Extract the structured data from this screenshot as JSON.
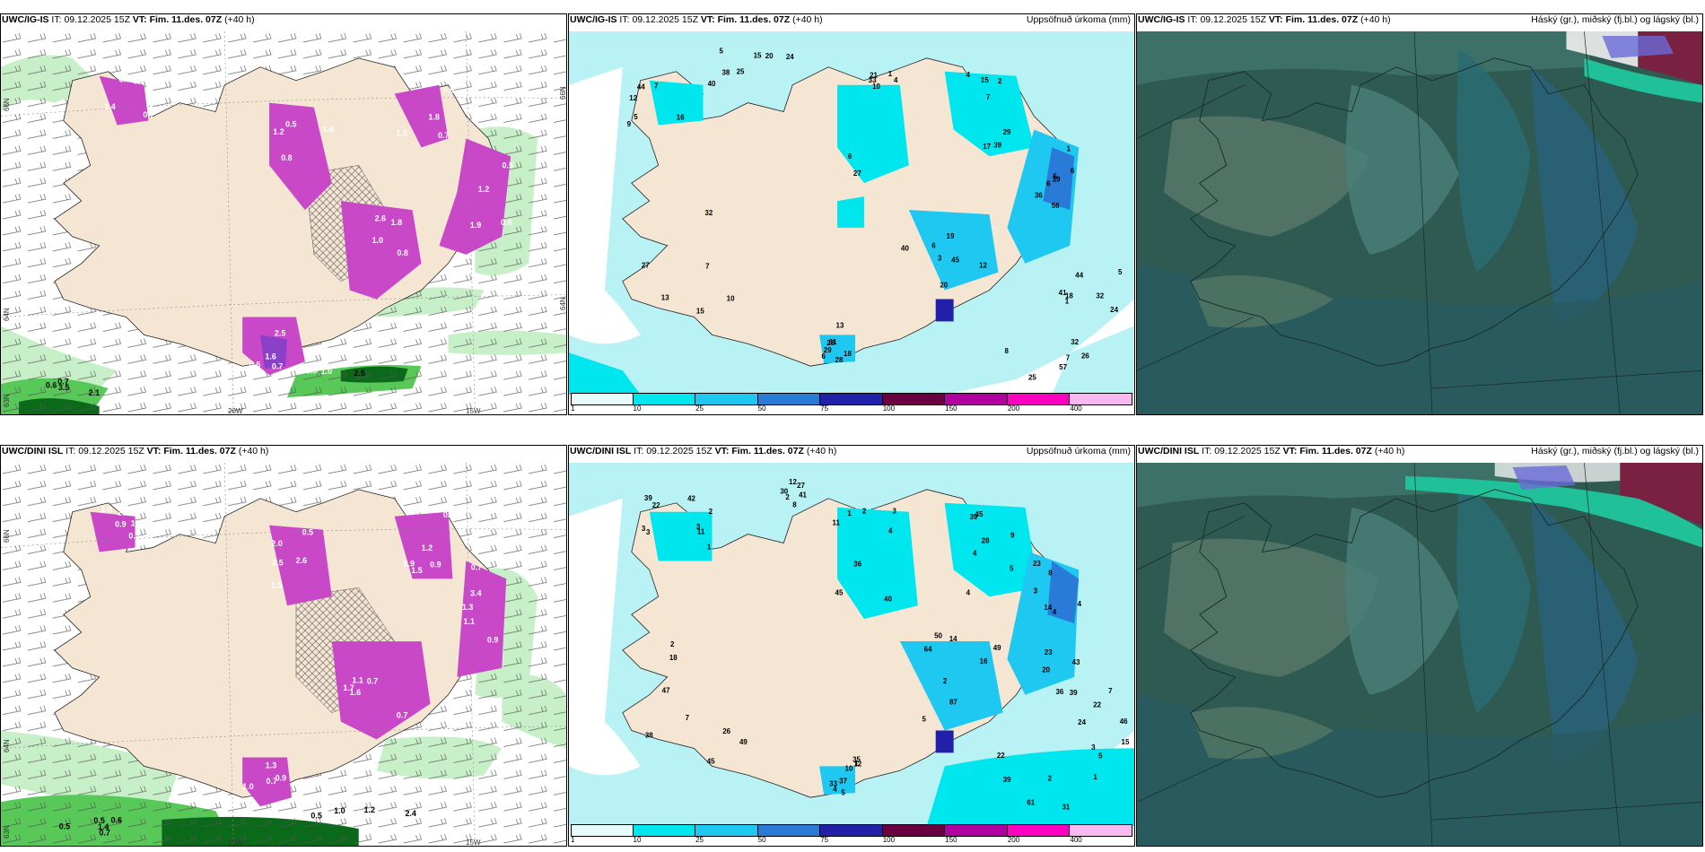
{
  "colors": {
    "land": "#f5e6d4",
    "sea_light": "#b8f2f4",
    "cyan": "#00e6ef",
    "blue": "#1ec8f0",
    "dark_blue": "#2a7ad8",
    "navy": "#2020a8",
    "maroon": "#6a0040",
    "purple": "#b000a0",
    "magenta": "#ff00c0",
    "pink": "#f8b8f0",
    "green_light": "#c8f0c8",
    "green_mid": "#58c858",
    "green_dark": "#0a6a1a",
    "violet": "#c848c8",
    "cloud_bg": "#2e5a52"
  },
  "panels": [
    {
      "model": "UWC/IG-IS",
      "it_label": "IT:",
      "it_value": "09.12.2025 15Z",
      "vt_label": "VT:",
      "vt_value": "Fim. 11.des. 07Z",
      "lead": "(+40 h)",
      "right_title": "",
      "axis_left": [
        "66N",
        "64N",
        "63N"
      ],
      "axis_right": [
        "66N",
        "64N"
      ],
      "axis_bottom": [
        "20W",
        "15W"
      ],
      "labels": [
        "0.7",
        "1.2",
        "0.9",
        "1.2",
        "1.8",
        "0.5",
        "0.7",
        "2.5",
        "1.4",
        "0.5",
        "1.5",
        "1.9",
        "2.6",
        "2.5",
        "2.1",
        "0.9",
        "3.6",
        "1.6",
        "1.8",
        "0.5",
        "1.0",
        "1.6",
        "3.5",
        "1.0",
        "0.7",
        "0.8",
        "0.7",
        "0.6",
        "0.8",
        "0.7",
        "0.6"
      ]
    },
    {
      "model": "UWC/IG-IS",
      "it_label": "IT:",
      "it_value": "09.12.2025 15Z",
      "vt_label": "VT:",
      "vt_value": "Fim. 11.des. 07Z",
      "lead": "(+40 h)",
      "right_title": "Uppsöfnuð úrkoma (mm)",
      "labels": [
        "5",
        "4",
        "4",
        "1",
        "45",
        "61",
        "18",
        "13",
        "24",
        "32",
        "12",
        "21",
        "29",
        "19",
        "20",
        "13",
        "24",
        "27",
        "38",
        "25",
        "16",
        "33",
        "15",
        "5",
        "19",
        "28",
        "41",
        "32",
        "15",
        "7",
        "44",
        "6",
        "39",
        "56",
        "12",
        "29",
        "5",
        "7",
        "20",
        "26",
        "40",
        "10",
        "17",
        "36",
        "40",
        "28",
        "32",
        "15",
        "25",
        "57",
        "7",
        "27",
        "7",
        "6",
        "6",
        "18",
        "44",
        "10",
        "5",
        "8",
        "9",
        "1",
        "2",
        "6",
        "3",
        "6",
        "1"
      ],
      "colorbar": [
        "1",
        "10",
        "25",
        "50",
        "75",
        "100",
        "150",
        "200",
        "400"
      ]
    },
    {
      "model": "UWC/IG-IS",
      "it_label": "IT:",
      "it_value": "09.12.2025 15Z",
      "vt_label": "VT:",
      "vt_value": "Fim. 11.des. 07Z",
      "lead": "(+40 h)",
      "right_title": "Háský (gr.), miðský (fj.bl.) og lágský (bl.)"
    },
    {
      "model": "UWC/DINI ISL",
      "it_label": "IT:",
      "it_value": "09.12.2025 15Z",
      "vt_label": "VT:",
      "vt_value": "Fim. 11.des. 07Z",
      "lead": "(+40 h)",
      "right_title": "",
      "axis_left": [
        "66N",
        "64N",
        "63N"
      ],
      "axis_right": [],
      "axis_bottom": [
        "20W",
        "15W"
      ],
      "labels": [
        "0.5",
        "0.5",
        "0.6",
        "0.9",
        "0.7",
        "1.3",
        "0.5",
        "1.2",
        "0.9",
        "2.6",
        "2.9",
        "1.3",
        "1.6",
        "0.7",
        "1.4",
        "2.4",
        "1.8",
        "1.5",
        "1.5",
        "3.4",
        "1.7",
        "0.9",
        "0.5",
        "0.5",
        "1.5",
        "0.5",
        "0.9",
        "1.1",
        "1.1",
        "1.0",
        "0.6",
        "1.0",
        "2.2",
        "2.0",
        "1.2",
        "0.7",
        "0.7",
        "1.0",
        "0.7"
      ]
    },
    {
      "model": "UWC/DINI ISL",
      "it_label": "IT:",
      "it_value": "09.12.2025 15Z",
      "vt_label": "VT:",
      "vt_value": "Fim. 11.des. 07Z",
      "lead": "(+40 h)",
      "right_title": "Uppsöfnuð úrkoma (mm)",
      "labels": [
        "11",
        "3",
        "4",
        "4",
        "5",
        "5",
        "3",
        "2",
        "2",
        "1",
        "3",
        "36",
        "45",
        "23",
        "14",
        "33",
        "36",
        "38",
        "12",
        "31",
        "39",
        "40",
        "28",
        "8",
        "16",
        "35",
        "46",
        "26",
        "27",
        "39",
        "3",
        "2",
        "39",
        "20",
        "50",
        "12",
        "22",
        "47",
        "8",
        "5",
        "3",
        "11",
        "9",
        "43",
        "87",
        "4",
        "24",
        "45",
        "41",
        "22",
        "42",
        "45",
        "4",
        "3",
        "49",
        "37",
        "39",
        "49",
        "30",
        "61",
        "22",
        "4",
        "5",
        "4",
        "2",
        "1",
        "7",
        "7",
        "2",
        "2",
        "1",
        "1",
        "23",
        "14",
        "64",
        "10",
        "15",
        "18"
      ],
      "colorbar": [
        "1",
        "10",
        "25",
        "50",
        "75",
        "100",
        "150",
        "200",
        "400"
      ]
    },
    {
      "model": "UWC/DINI ISL",
      "it_label": "IT:",
      "it_value": "09.12.2025 15Z",
      "vt_label": "VT:",
      "vt_value": "Fim. 11.des. 07Z",
      "lead": "(+40 h)",
      "right_title": "Háský (gr.), miðský (fj.bl.) og lágský (bl.)"
    }
  ]
}
